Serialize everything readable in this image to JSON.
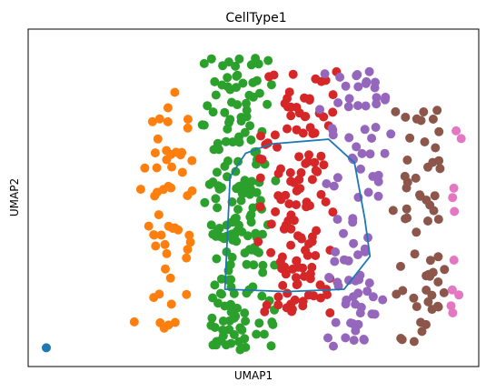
{
  "chart_data": {
    "type": "scatter",
    "title": "CellType1",
    "xlabel": "UMAP1",
    "ylabel": "UMAP2",
    "xticks": [],
    "yticks": [],
    "xlim": [
      -0.5,
      8.2
    ],
    "ylim": [
      -2.7,
      4.5
    ],
    "grid": false,
    "legend": "none",
    "colors": {
      "blue": "#1f77b4",
      "orange": "#ff7f0e",
      "green": "#2ca02c",
      "red": "#d62728",
      "purple": "#9467bd",
      "brown": "#8c564b",
      "pink": "#e377c2",
      "hull": "#1f77b4"
    },
    "clusters": [
      {
        "color": "blue",
        "count": 1,
        "cx": [
          -0.15,
          -0.15
        ],
        "cy": [
          -2.3,
          -2.3
        ]
      },
      {
        "color": "orange",
        "count": 55,
        "cx": [
          1.5,
          2.8
        ],
        "cy": [
          -2.0,
          3.2
        ]
      },
      {
        "color": "green",
        "count": 190,
        "cx": [
          2.8,
          4.3
        ],
        "cy": [
          -2.4,
          3.9
        ]
      },
      {
        "color": "red",
        "count": 130,
        "cx": [
          3.9,
          5.5
        ],
        "cy": [
          -1.6,
          3.6
        ]
      },
      {
        "color": "purple",
        "count": 90,
        "cx": [
          5.1,
          6.6
        ],
        "cy": [
          -2.3,
          3.7
        ]
      },
      {
        "color": "brown",
        "count": 60,
        "cx": [
          6.5,
          7.6
        ],
        "cy": [
          -2.2,
          2.8
        ]
      },
      {
        "color": "pink",
        "count": 10,
        "cx": [
          7.5,
          7.9
        ],
        "cy": [
          -2.3,
          2.6
        ]
      }
    ],
    "hull_polygon": [
      [
        3.4,
        1.35
      ],
      [
        3.7,
        1.85
      ],
      [
        4.2,
        2.05
      ],
      [
        5.3,
        2.15
      ],
      [
        5.8,
        1.65
      ],
      [
        6.0,
        0.45
      ],
      [
        6.1,
        -0.35
      ],
      [
        5.6,
        -1.05
      ],
      [
        4.5,
        -1.1
      ],
      [
        3.3,
        -1.05
      ],
      [
        3.4,
        1.35
      ]
    ]
  }
}
